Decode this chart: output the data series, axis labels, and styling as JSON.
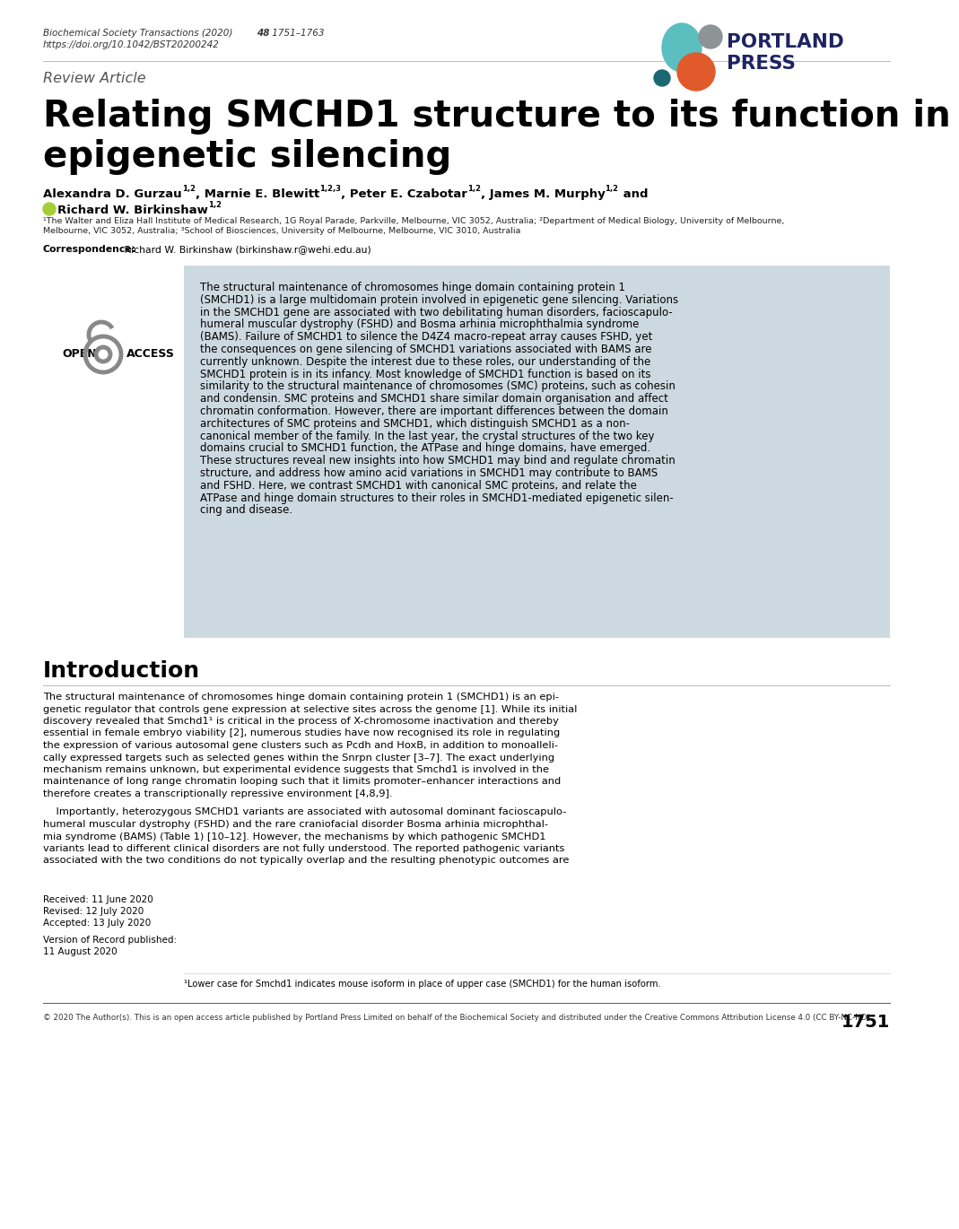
{
  "journal_italic": "Biochemical Society Transactions (2020) ",
  "journal_bold_part": "48",
  "journal_end": " 1751–1763",
  "journal_doi": "https://doi.org/10.1042/BST20200242",
  "review_label": "Review Article",
  "title_line1": "Relating SMCHD1 structure to its function in",
  "title_line2": "epigenetic silencing",
  "affil1": "¹The Walter and Eliza Hall Institute of Medical Research, 1G Royal Parade, Parkville, Melbourne, VIC 3052, Australia; ²Department of Medical Biology, University of Melbourne,",
  "affil2": "Melbourne, VIC 3052, Australia; ³School of Biosciences, University of Melbourne, Melbourne, VIC 3010, Australia",
  "corr_bold": "Correspondence:",
  "corr_rest": " Richard W. Birkinshaw (birkinshaw.r@wehi.edu.au)",
  "abstract_text_lines": [
    "The structural maintenance of chromosomes hinge domain containing protein 1",
    "(SMCHD1) is a large multidomain protein involved in epigenetic gene silencing. Variations",
    "in the SMCHD1 gene are associated with two debilitating human disorders, facioscapulo-",
    "humeral muscular dystrophy (FSHD) and Bosma arhinia microphthalmia syndrome",
    "(BAMS). Failure of SMCHD1 to silence the D4Z4 macro-repeat array causes FSHD, yet",
    "the consequences on gene silencing of SMCHD1 variations associated with BAMS are",
    "currently unknown. Despite the interest due to these roles, our understanding of the",
    "SMCHD1 protein is in its infancy. Most knowledge of SMCHD1 function is based on its",
    "similarity to the structural maintenance of chromosomes (SMC) proteins, such as cohesin",
    "and condensin. SMC proteins and SMCHD1 share similar domain organisation and affect",
    "chromatin conformation. However, there are important differences between the domain",
    "architectures of SMC proteins and SMCHD1, which distinguish SMCHD1 as a non-",
    "canonical member of the family. In the last year, the crystal structures of the two key",
    "domains crucial to SMCHD1 function, the ATPase and hinge domains, have emerged.",
    "These structures reveal new insights into how SMCHD1 may bind and regulate chromatin",
    "structure, and address how amino acid variations in SMCHD1 may contribute to BAMS",
    "and FSHD. Here, we contrast SMCHD1 with canonical SMC proteins, and relate the",
    "ATPase and hinge domain structures to their roles in SMCHD1-mediated epigenetic silen-",
    "cing and disease."
  ],
  "intro_title": "Introduction",
  "intro_p1_lines": [
    "The structural maintenance of chromosomes hinge domain containing protein 1 (SMCHD1) is an epi-",
    "genetic regulator that controls gene expression at selective sites across the genome [1]. While its initial",
    "discovery revealed that Smchd1¹ is critical in the process of X-chromosome inactivation and thereby",
    "essential in female embryo viability [2], numerous studies have now recognised its role in regulating",
    "the expression of various autosomal gene clusters such as Pcdh and HoxB, in addition to monoalleli-",
    "cally expressed targets such as selected genes within the Snrpn cluster [3–7]. The exact underlying",
    "mechanism remains unknown, but experimental evidence suggests that Smchd1 is involved in the",
    "maintenance of long range chromatin looping such that it limits promoter–enhancer interactions and",
    "therefore creates a transcriptionally repressive environment [4,8,9]."
  ],
  "intro_p2_lines": [
    "    Importantly, heterozygous SMCHD1 variants are associated with autosomal dominant facioscapulo-",
    "humeral muscular dystrophy (FSHD) and the rare craniofacial disorder Bosma arhinia microphthal-",
    "mia syndrome (BAMS) (Table 1) [10–12]. However, the mechanisms by which pathogenic SMCHD1",
    "variants lead to different clinical disorders are not fully understood. The reported pathogenic variants",
    "associated with the two conditions do not typically overlap and the resulting phenotypic outcomes are"
  ],
  "footnote": "¹Lower case for Smchd1 indicates mouse isoform in place of upper case (SMCHD1) for the human isoform.",
  "footer_text": "© 2020 The Author(s). This is an open access article published by Portland Press Limited on behalf of the Biochemical Society and distributed under the Creative Commons Attribution License 4.0 (CC BY-NC-ND).",
  "footer_page": "1751",
  "abstract_bg": "#cdd9e0",
  "portland_teal": "#5bbfc0",
  "portland_orange": "#e05a2b",
  "portland_gray": "#8c9496",
  "portland_dark_teal": "#1a6872",
  "portland_navy": "#1e2462",
  "orcid_green": "#a6ce39"
}
